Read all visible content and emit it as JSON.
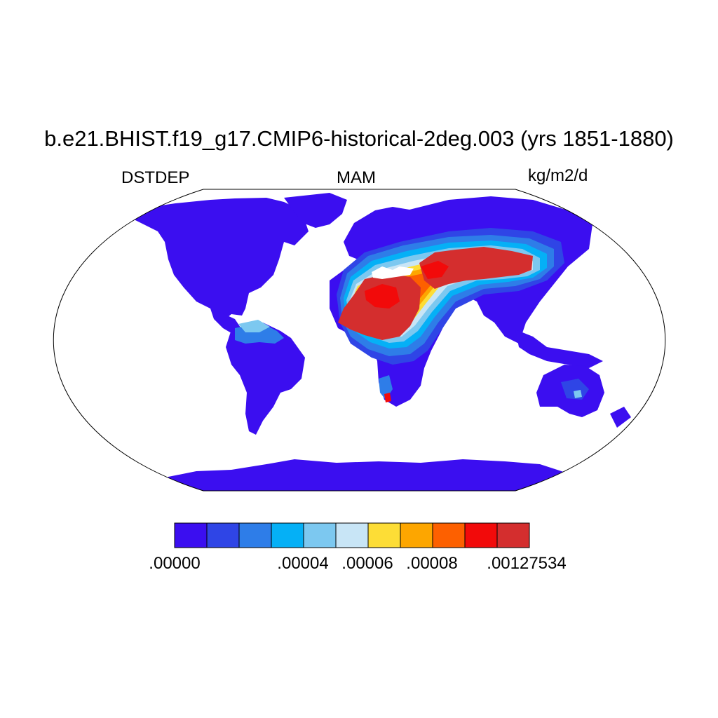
{
  "title": "b.e21.BHIST.f19_g17.CMIP6-historical-2deg.003 (yrs 1851-1880)",
  "variable": "DSTDEP",
  "season": "MAM",
  "units": "kg/m2/d",
  "colorbar": {
    "colors": [
      "#3b0ef0",
      "#2f45e6",
      "#2e7de8",
      "#05b0f6",
      "#7cc8f0",
      "#c8e5f6",
      "#fddd36",
      "#fda600",
      "#fd6000",
      "#f20a0a",
      "#d42e2e"
    ],
    "labels": [
      ".00000",
      ".00004",
      ".00006",
      ".00008",
      ".00127534"
    ]
  },
  "colors": {
    "land_low": "#3b0ef0",
    "land_blue2": "#2f45e6",
    "land_blue3": "#2e7de8",
    "cyan": "#05b0f6",
    "light_blue": "#7cc8f0",
    "pale": "#c8e5f6",
    "yellow": "#fddd36",
    "orange": "#fda600",
    "dark_orange": "#fd6000",
    "red": "#f20a0a",
    "dark_red": "#d42e2e"
  }
}
